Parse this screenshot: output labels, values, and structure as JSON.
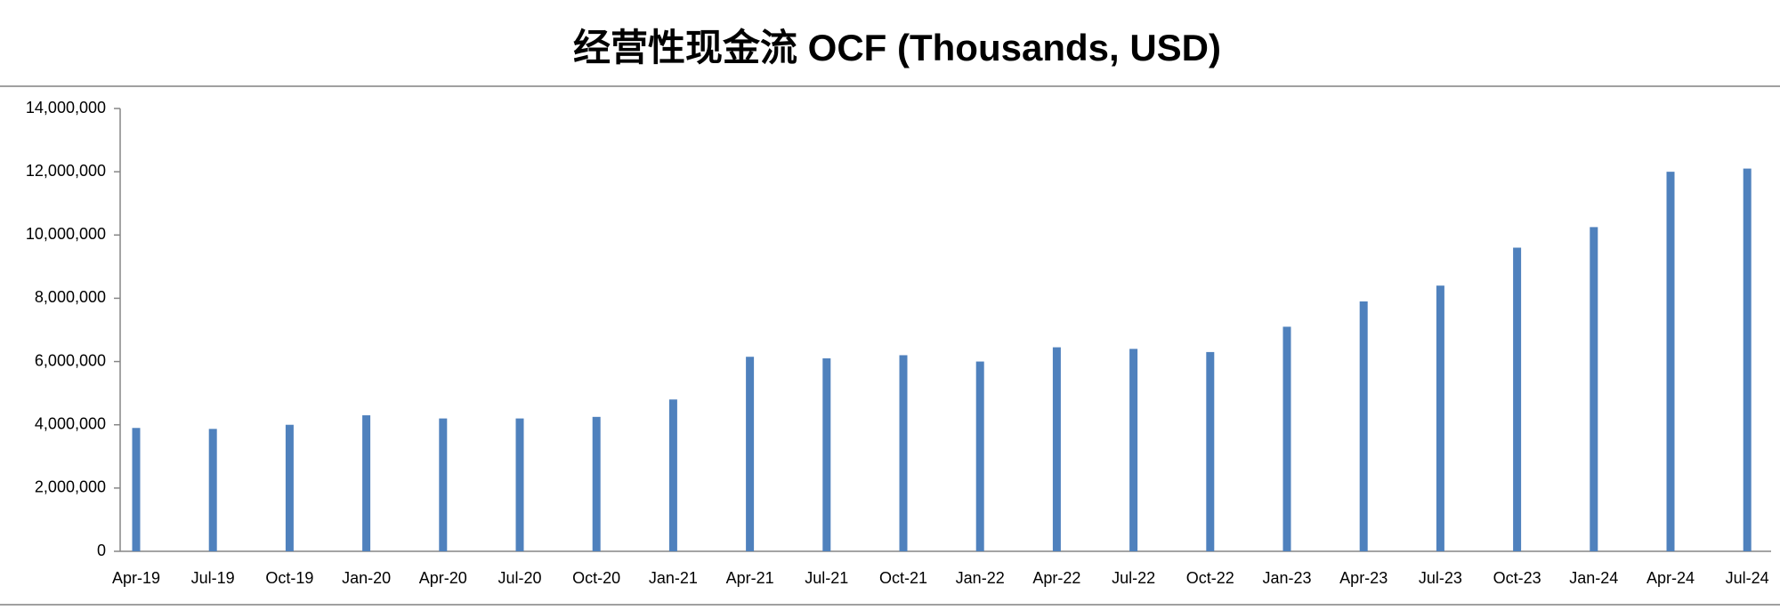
{
  "chart_data": {
    "type": "bar",
    "title": "经营性现金流 OCF (Thousands, USD)",
    "categories": [
      "Apr-19",
      "Jul-19",
      "Oct-19",
      "Jan-20",
      "Apr-20",
      "Jul-20",
      "Oct-20",
      "Jan-21",
      "Apr-21",
      "Jul-21",
      "Oct-21",
      "Jan-22",
      "Apr-22",
      "Jul-22",
      "Oct-22",
      "Jan-23",
      "Apr-23",
      "Jul-23",
      "Oct-23",
      "Jan-24",
      "Apr-24",
      "Jul-24"
    ],
    "values": [
      3900000,
      3870000,
      4000000,
      4300000,
      4200000,
      4200000,
      4250000,
      4800000,
      6150000,
      6100000,
      6200000,
      6000000,
      6450000,
      6400000,
      6300000,
      7100000,
      7900000,
      8400000,
      9600000,
      10250000,
      12000000,
      12100000
    ],
    "color": "#4f81bd",
    "ylim": [
      0,
      14000000
    ],
    "yticks": [
      0,
      {
        "value": 2000000,
        "label": "2,000,000"
      },
      {
        "value": 4000000,
        "label": "4,000,000"
      },
      {
        "value": 6000000,
        "label": "6,000,000"
      },
      {
        "value": 8000000,
        "label": "8,000,000"
      },
      {
        "value": 10000000,
        "label": "10,000,000"
      },
      {
        "value": 12000000,
        "label": "12,000,000"
      },
      {
        "value": 14000000,
        "label": "14,000,000"
      }
    ],
    "grid": false
  }
}
